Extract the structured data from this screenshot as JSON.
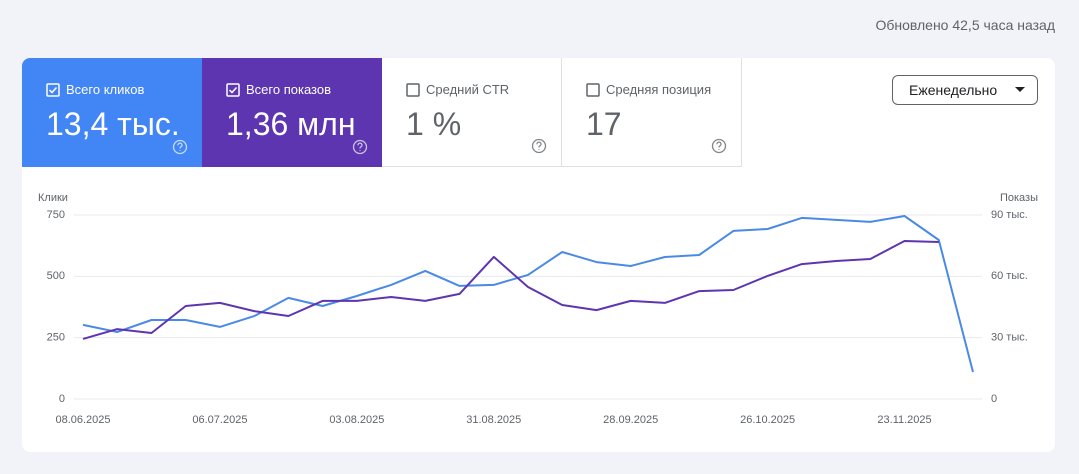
{
  "header": {
    "updated": "Обновлено 42,5 часа назад"
  },
  "tiles": [
    {
      "label": "Всего кликов",
      "value": "13,4 тыс.",
      "checked": true,
      "color": "#4285f4"
    },
    {
      "label": "Всего показов",
      "value": "1,36 млн",
      "checked": true,
      "color": "#5e35b1"
    },
    {
      "label": "Средний CTR",
      "value": "1 %",
      "checked": false
    },
    {
      "label": "Средняя позиция",
      "value": "17",
      "checked": false
    }
  ],
  "dropdown": {
    "label": "Еженедельно"
  },
  "chart_data": {
    "type": "line",
    "y_label": "Клики",
    "y2_label": "Показы",
    "categories": [
      "08.06.2025",
      null,
      null,
      null,
      "06.07.2025",
      null,
      null,
      null,
      "03.08.2025",
      null,
      null,
      null,
      "31.08.2025",
      null,
      null,
      null,
      "28.09.2025",
      null,
      null,
      null,
      "26.10.2025",
      null,
      null,
      null,
      "23.11.2025",
      null,
      null
    ],
    "series": [
      {
        "name": "Клики",
        "color": "#4a8ae6",
        "values": [
          302,
          273,
          322,
          322,
          294,
          338,
          412,
          379,
          420,
          465,
          522,
          461,
          465,
          506,
          599,
          558,
          542,
          579,
          587,
          685,
          693,
          738,
          730,
          722,
          746,
          648,
          110
        ]
      },
      {
        "name": "Показы",
        "color": "#5e35b1",
        "axis": "y2",
        "values": [
          29400,
          34200,
          32300,
          45500,
          47000,
          43000,
          40600,
          48000,
          48000,
          49900,
          48000,
          51400,
          69500,
          54800,
          46000,
          43500,
          48000,
          47000,
          52800,
          53300,
          60200,
          66000,
          67500,
          68500,
          77300,
          76800,
          null
        ]
      }
    ],
    "ylim": [
      0,
      750
    ],
    "yticks": [
      0,
      250,
      500,
      750
    ],
    "y2lim": [
      0,
      90000
    ],
    "y2ticks": [
      0,
      {
        "value": 30000,
        "label": "30 тыс."
      },
      {
        "value": 60000,
        "label": "60 тыс."
      },
      {
        "value": 90000,
        "label": "90 тыс."
      }
    ],
    "grid": true
  }
}
